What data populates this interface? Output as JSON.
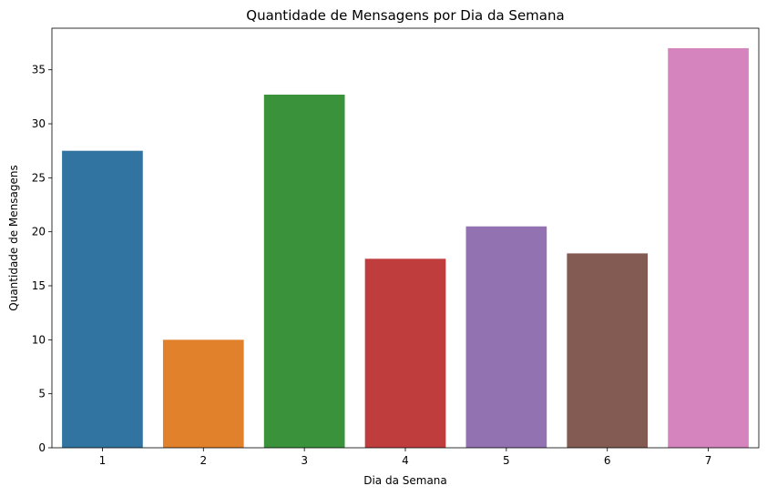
{
  "chart_data": {
    "type": "bar",
    "title": "Quantidade de Mensagens por Dia da Semana",
    "xlabel": "Dia da Semana",
    "ylabel": "Quantidade de Mensagens",
    "categories": [
      "1",
      "2",
      "3",
      "4",
      "5",
      "6",
      "7"
    ],
    "values": [
      27.5,
      10.0,
      32.7,
      17.5,
      20.5,
      18.0,
      37.0
    ],
    "colors": [
      "#3274a1",
      "#e1812c",
      "#3a923a",
      "#c03d3e",
      "#9372b2",
      "#845b53",
      "#d684bd"
    ],
    "ylim": [
      0,
      38.85
    ],
    "yticks": [
      0,
      5,
      10,
      15,
      20,
      25,
      30,
      35
    ],
    "grid": false,
    "legend": "none"
  }
}
